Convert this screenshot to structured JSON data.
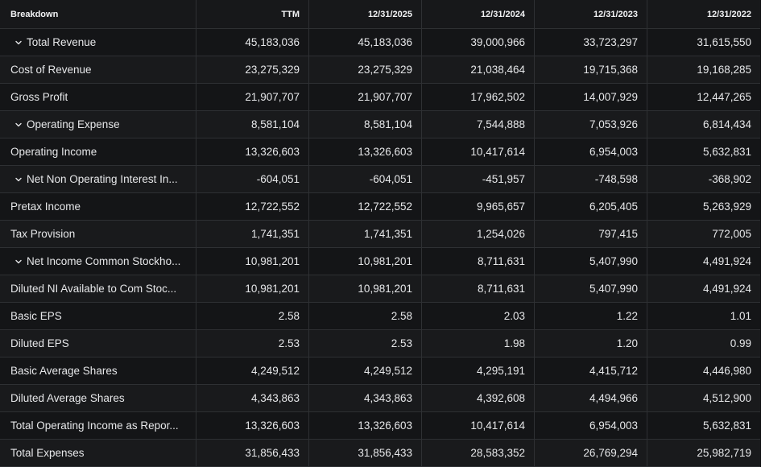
{
  "columns": [
    "Breakdown",
    "TTM",
    "12/31/2025",
    "12/31/2024",
    "12/31/2023",
    "12/31/2022"
  ],
  "rows": [
    {
      "label": "Total Revenue",
      "expandable": true,
      "values": [
        "45,183,036",
        "45,183,036",
        "39,000,966",
        "33,723,297",
        "31,615,550"
      ]
    },
    {
      "label": "Cost of Revenue",
      "expandable": false,
      "values": [
        "23,275,329",
        "23,275,329",
        "21,038,464",
        "19,715,368",
        "19,168,285"
      ]
    },
    {
      "label": "Gross Profit",
      "expandable": false,
      "values": [
        "21,907,707",
        "21,907,707",
        "17,962,502",
        "14,007,929",
        "12,447,265"
      ]
    },
    {
      "label": "Operating Expense",
      "expandable": true,
      "values": [
        "8,581,104",
        "8,581,104",
        "7,544,888",
        "7,053,926",
        "6,814,434"
      ]
    },
    {
      "label": "Operating Income",
      "expandable": false,
      "values": [
        "13,326,603",
        "13,326,603",
        "10,417,614",
        "6,954,003",
        "5,632,831"
      ]
    },
    {
      "label": "Net Non Operating Interest In...",
      "expandable": true,
      "values": [
        "-604,051",
        "-604,051",
        "-451,957",
        "-748,598",
        "-368,902"
      ]
    },
    {
      "label": "Pretax Income",
      "expandable": false,
      "values": [
        "12,722,552",
        "12,722,552",
        "9,965,657",
        "6,205,405",
        "5,263,929"
      ]
    },
    {
      "label": "Tax Provision",
      "expandable": false,
      "values": [
        "1,741,351",
        "1,741,351",
        "1,254,026",
        "797,415",
        "772,005"
      ]
    },
    {
      "label": "Net Income Common Stockho...",
      "expandable": true,
      "values": [
        "10,981,201",
        "10,981,201",
        "8,711,631",
        "5,407,990",
        "4,491,924"
      ]
    },
    {
      "label": "Diluted NI Available to Com Stoc...",
      "expandable": false,
      "values": [
        "10,981,201",
        "10,981,201",
        "8,711,631",
        "5,407,990",
        "4,491,924"
      ]
    },
    {
      "label": "Basic EPS",
      "expandable": false,
      "values": [
        "2.58",
        "2.58",
        "2.03",
        "1.22",
        "1.01"
      ]
    },
    {
      "label": "Diluted EPS",
      "expandable": false,
      "values": [
        "2.53",
        "2.53",
        "1.98",
        "1.20",
        "0.99"
      ]
    },
    {
      "label": "Basic Average Shares",
      "expandable": false,
      "values": [
        "4,249,512",
        "4,249,512",
        "4,295,191",
        "4,415,712",
        "4,446,980"
      ]
    },
    {
      "label": "Diluted Average Shares",
      "expandable": false,
      "values": [
        "4,343,863",
        "4,343,863",
        "4,392,608",
        "4,494,966",
        "4,512,900"
      ]
    },
    {
      "label": "Total Operating Income as Repor...",
      "expandable": false,
      "values": [
        "13,326,603",
        "13,326,603",
        "10,417,614",
        "6,954,003",
        "5,632,831"
      ]
    },
    {
      "label": "Total Expenses",
      "expandable": false,
      "values": [
        "31,856,433",
        "31,856,433",
        "28,583,352",
        "26,769,294",
        "25,982,719"
      ]
    }
  ],
  "icons": {
    "expand": "chevron-down-icon"
  },
  "colors": {
    "background": "#141517",
    "text": "#e6e7e9",
    "border": "#2e3033"
  }
}
